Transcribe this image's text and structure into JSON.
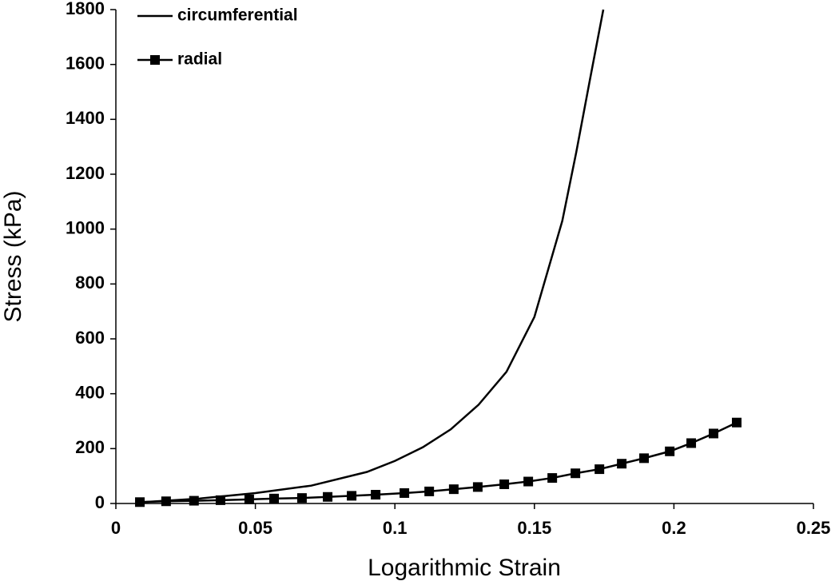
{
  "chart_data": {
    "type": "line",
    "xlabel": "Logarithmic Strain",
    "ylabel": "Stress (kPa)",
    "xlim": [
      0,
      0.25
    ],
    "xticks": [
      0,
      0.05,
      0.1,
      0.15,
      0.2,
      0.25
    ],
    "ylim": [
      0,
      1800
    ],
    "yticks": [
      0,
      200,
      400,
      600,
      800,
      1000,
      1200,
      1400,
      1600,
      1800
    ],
    "legend": "top-left",
    "series": [
      {
        "name": "circumferential",
        "color": "#000000",
        "marker": "none",
        "x": [
          0.01,
          0.03,
          0.05,
          0.07,
          0.09,
          0.1,
          0.11,
          0.12,
          0.13,
          0.14,
          0.15,
          0.16,
          0.165,
          0.17,
          0.1747
        ],
        "values": [
          5,
          18,
          38,
          65,
          115,
          155,
          205,
          270,
          360,
          480,
          680,
          1030,
          1280,
          1550,
          1800
        ]
      },
      {
        "name": "radial",
        "color": "#000000",
        "marker": "square",
        "x": [
          0.0086,
          0.018,
          0.028,
          0.0375,
          0.0478,
          0.0567,
          0.0667,
          0.0759,
          0.0845,
          0.0931,
          0.1034,
          0.1123,
          0.1211,
          0.1297,
          0.1392,
          0.1478,
          0.1564,
          0.1647,
          0.1733,
          0.1813,
          0.1893,
          0.1985,
          0.2062,
          0.2142,
          0.2225
        ],
        "values": [
          5,
          8,
          10,
          12,
          15,
          18,
          20,
          24,
          28,
          32,
          38,
          44,
          52,
          60,
          70,
          80,
          93,
          110,
          125,
          145,
          165,
          190,
          220,
          255,
          295
        ]
      }
    ]
  }
}
